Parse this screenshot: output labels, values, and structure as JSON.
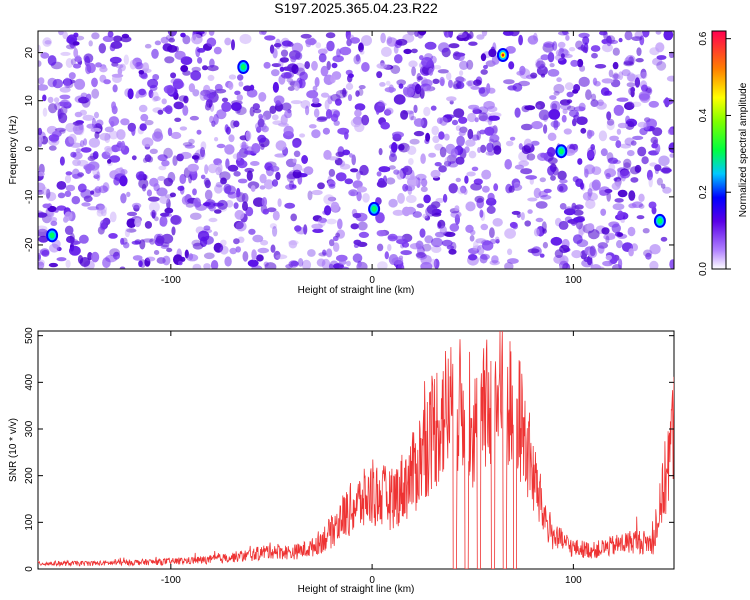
{
  "title": "S197.2025.365.04.23.R22",
  "chart_data": [
    {
      "type": "heatmap",
      "title": "S197.2025.365.04.23.R22",
      "xlabel": "Height of straight line (km)",
      "ylabel": "Frequency (Hz)",
      "xlim": [
        -166,
        150
      ],
      "ylim": [
        -25,
        24.5
      ],
      "x_ticks": [
        -100,
        0,
        100
      ],
      "y_ticks": [
        -20,
        -10,
        0,
        10,
        20
      ],
      "colorbar": {
        "label": "Normalized spectral amplitude",
        "range": [
          0,
          0.62
        ],
        "ticks": [
          0.0,
          0.2,
          0.4,
          0.6
        ],
        "tick_labels": [
          "0.0",
          "0.2",
          "0.4",
          "0.6"
        ]
      },
      "hot_spots": [
        {
          "x": -159,
          "y": -18,
          "value": 0.3
        },
        {
          "x": -64,
          "y": 17,
          "value": 0.35
        },
        {
          "x": 1,
          "y": -12.5,
          "value": 0.3
        },
        {
          "x": 65,
          "y": 19.5,
          "value": 0.55
        },
        {
          "x": 94,
          "y": -0.5,
          "value": 0.3
        },
        {
          "x": 143,
          "y": -15,
          "value": 0.35
        }
      ],
      "blank_columns_x": [
        0,
        65
      ]
    },
    {
      "type": "line",
      "xlabel": "Height of straight line (km)",
      "ylabel": "SNR (10 * v/v)",
      "xlim": [
        -166,
        150
      ],
      "ylim": [
        0,
        510
      ],
      "x_ticks": [
        -100,
        0,
        100
      ],
      "y_ticks": [
        0,
        100,
        200,
        300,
        400,
        500
      ],
      "series_color": "#ee3333",
      "series": [
        {
          "x": [
            -166,
            -140,
            -120,
            -100,
            -80,
            -60,
            -50,
            -40,
            -30,
            -20,
            -15,
            -10,
            0,
            10,
            20,
            25,
            30,
            35,
            40,
            45,
            50,
            55,
            60,
            65,
            70,
            75,
            80,
            85,
            90,
            100,
            110,
            120,
            130,
            140,
            150
          ],
          "values": [
            12,
            12,
            14,
            16,
            20,
            30,
            40,
            35,
            45,
            80,
            110,
            130,
            160,
            150,
            200,
            250,
            300,
            330,
            350,
            340,
            300,
            330,
            360,
            370,
            350,
            300,
            200,
            120,
            70,
            45,
            40,
            50,
            60,
            55,
            300
          ],
          "drops_to_zero_x": [
            41,
            47,
            53,
            60,
            66,
            71
          ]
        }
      ]
    }
  ]
}
